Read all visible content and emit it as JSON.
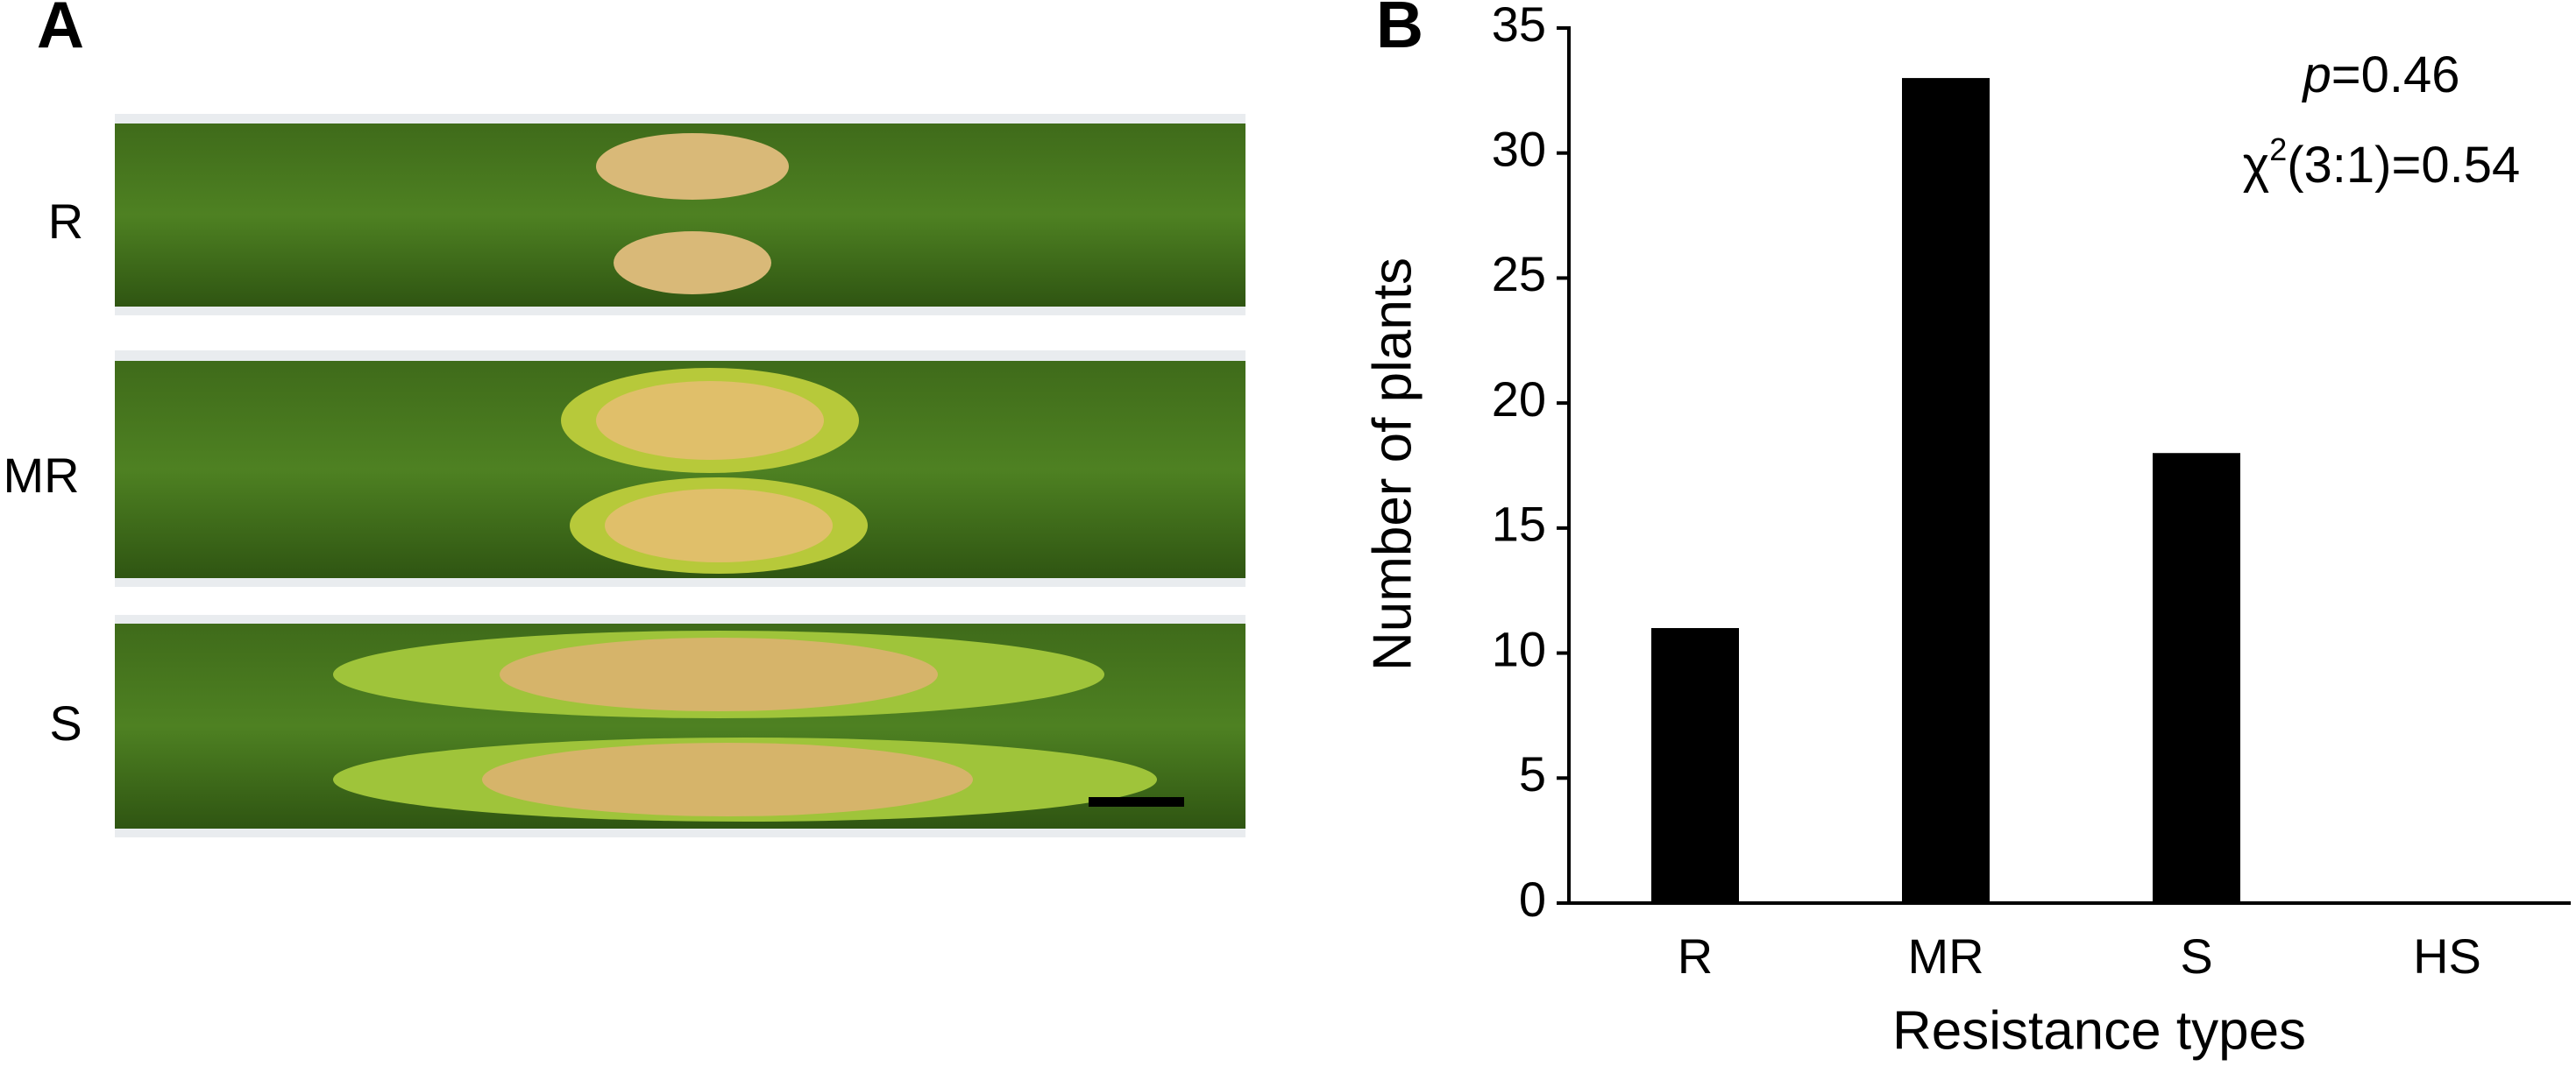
{
  "panel_a": {
    "label": "A",
    "rows": [
      "R",
      "MR",
      "S"
    ]
  },
  "chart_data": {
    "type": "bar",
    "panel_label": "B",
    "categories": [
      "R",
      "MR",
      "S",
      "HS"
    ],
    "values": [
      11,
      33,
      18,
      0
    ],
    "color": "#000000",
    "x_label": "Resistance types",
    "y_label": "Number of plants",
    "ylim": [
      0,
      35
    ],
    "yticks": [
      0,
      5,
      10,
      15,
      20,
      25,
      30,
      35
    ],
    "annotations": [
      [
        "p",
        "=0.46"
      ],
      [
        "χ",
        "2",
        "(3:1)=0.54"
      ]
    ]
  }
}
